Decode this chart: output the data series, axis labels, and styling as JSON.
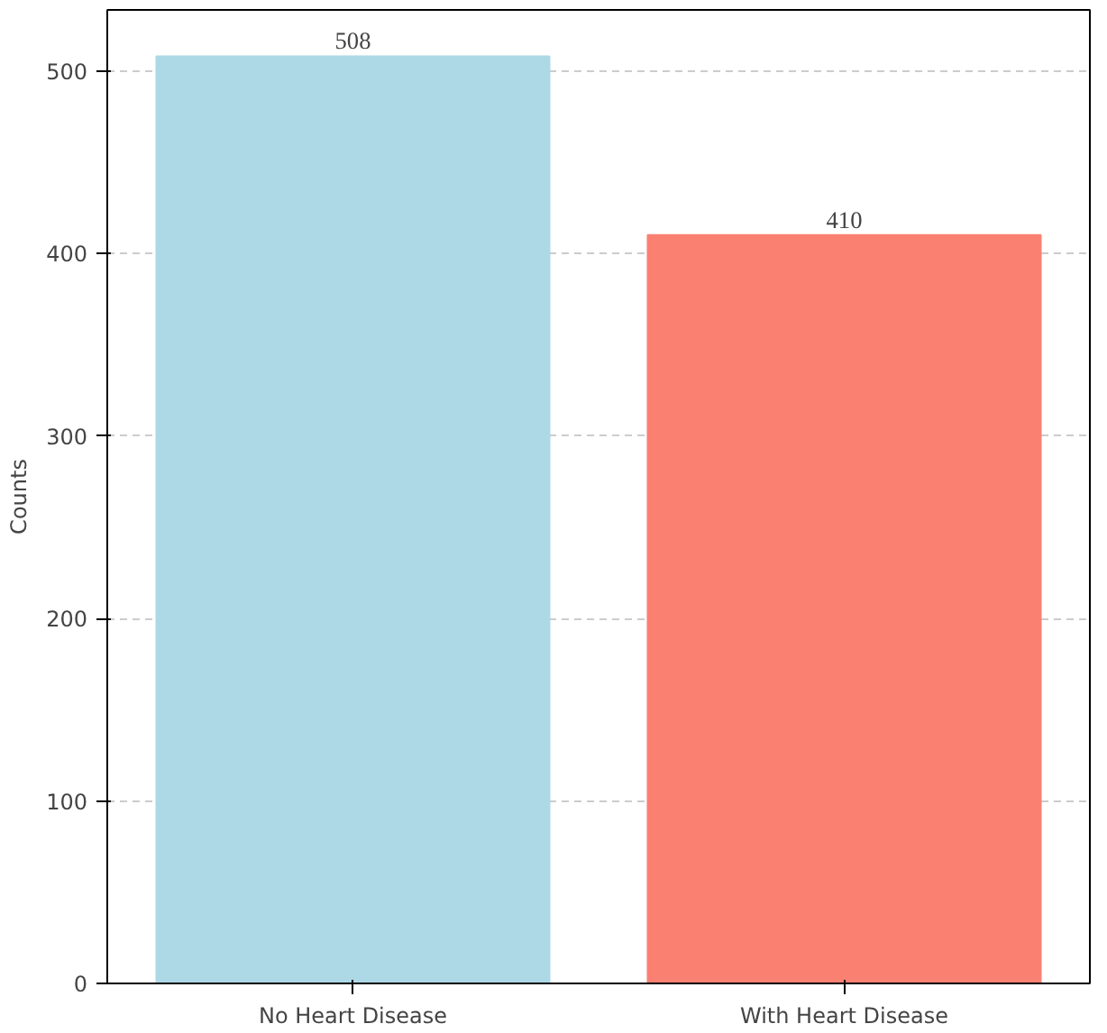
{
  "chart_data": {
    "type": "bar",
    "categories": [
      "No Heart Disease",
      "With Heart Disease"
    ],
    "values": [
      508,
      410
    ],
    "colors": [
      "#add8e6",
      "#fa8072"
    ],
    "ylabel": "Counts",
    "ylim": [
      0,
      533.4
    ],
    "yticks": [
      0,
      100,
      200,
      300,
      400,
      500
    ],
    "data_labels": true,
    "grid": "y"
  }
}
